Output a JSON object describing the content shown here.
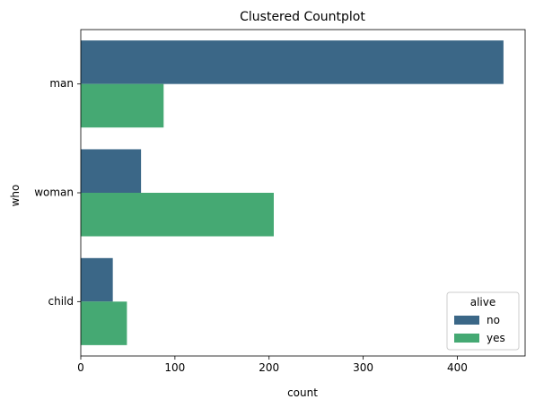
{
  "chart_data": {
    "type": "bar",
    "orientation": "horizontal",
    "title": "Clustered Countplot",
    "xlabel": "count",
    "ylabel": "who",
    "categories": [
      "man",
      "woman",
      "child"
    ],
    "series": [
      {
        "name": "no",
        "values": [
          449,
          64,
          34
        ],
        "color": "#3b6787"
      },
      {
        "name": "yes",
        "values": [
          88,
          205,
          49
        ],
        "color": "#45a973"
      }
    ],
    "xlim": [
      0,
      472
    ],
    "xticks": [
      0,
      100,
      200,
      300,
      400
    ],
    "grid": false,
    "legend": {
      "title": "alive",
      "position": "bottom-right"
    }
  }
}
